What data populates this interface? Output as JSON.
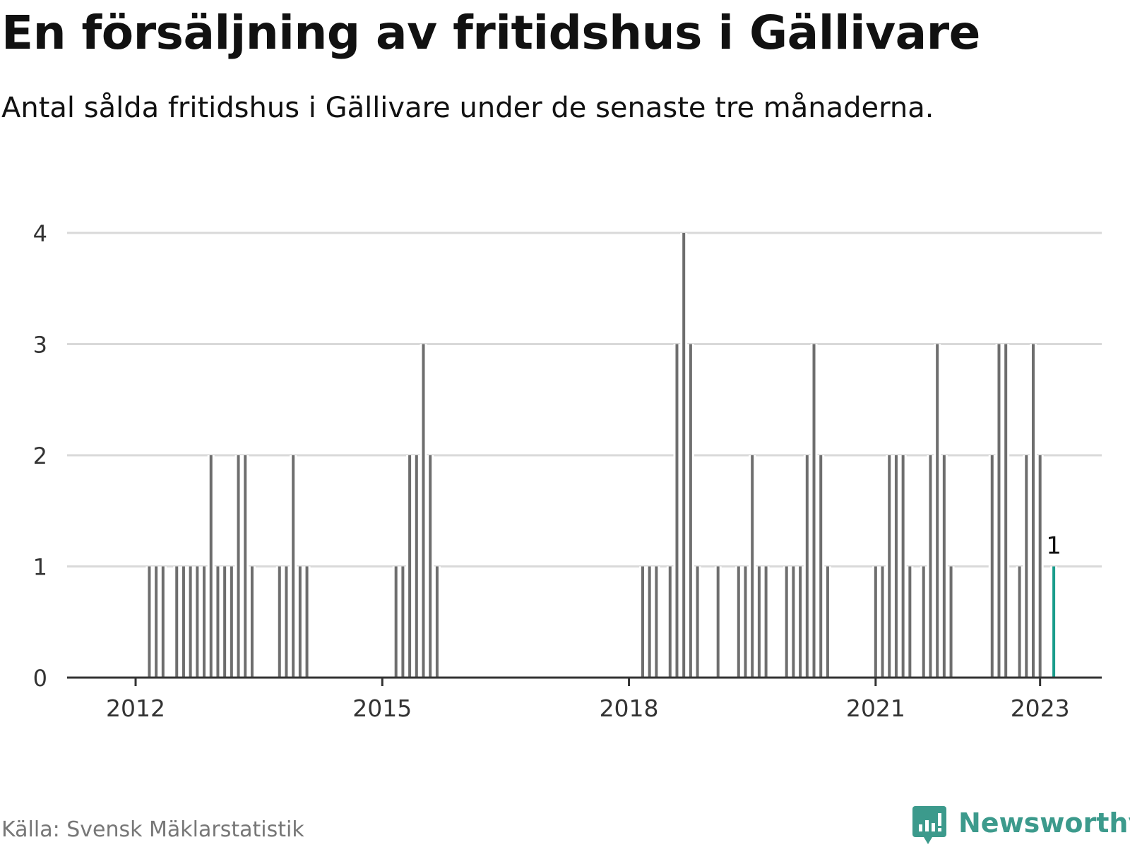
{
  "header": {
    "title": "En försäljning av fritidshus i Gällivare",
    "subtitle": "Antal sålda fritidshus i Gällivare under de senaste tre månaderna."
  },
  "footer": {
    "source": "Källa: Svensk Mäklarstatistik",
    "brand": "Newsworthy"
  },
  "colors": {
    "bar": "#6e6e6e",
    "highlight": "#1a9c8c",
    "grid": "#d9d9d9",
    "axis": "#333333",
    "brand": "#3c9a8c"
  },
  "chart_data": {
    "type": "bar",
    "xlabel": "",
    "ylabel": "",
    "ylim": [
      0,
      4
    ],
    "yticks": [
      0,
      1,
      2,
      3,
      4
    ],
    "xlim": [
      "2011-03",
      "2023-10"
    ],
    "xticks": [
      {
        "label": "2012",
        "x": "2012-01"
      },
      {
        "label": "2015",
        "x": "2015-01"
      },
      {
        "label": "2018",
        "x": "2018-01"
      },
      {
        "label": "2021",
        "x": "2021-01"
      },
      {
        "label": "2023",
        "x": "2023-01"
      }
    ],
    "grid": true,
    "highlight_label": "1",
    "series": [
      {
        "values": [
          {
            "x": "2012-03",
            "y": 1
          },
          {
            "x": "2012-04",
            "y": 1
          },
          {
            "x": "2012-05",
            "y": 1
          },
          {
            "x": "2012-07",
            "y": 1
          },
          {
            "x": "2012-08",
            "y": 1
          },
          {
            "x": "2012-09",
            "y": 1
          },
          {
            "x": "2012-10",
            "y": 1
          },
          {
            "x": "2012-11",
            "y": 1
          },
          {
            "x": "2012-12",
            "y": 2
          },
          {
            "x": "2013-01",
            "y": 1
          },
          {
            "x": "2013-02",
            "y": 1
          },
          {
            "x": "2013-03",
            "y": 1
          },
          {
            "x": "2013-04",
            "y": 2
          },
          {
            "x": "2013-05",
            "y": 2
          },
          {
            "x": "2013-06",
            "y": 1
          },
          {
            "x": "2013-10",
            "y": 1
          },
          {
            "x": "2013-11",
            "y": 1
          },
          {
            "x": "2013-12",
            "y": 2
          },
          {
            "x": "2014-01",
            "y": 1
          },
          {
            "x": "2014-02",
            "y": 1
          },
          {
            "x": "2015-03",
            "y": 1
          },
          {
            "x": "2015-04",
            "y": 1
          },
          {
            "x": "2015-05",
            "y": 2
          },
          {
            "x": "2015-06",
            "y": 2
          },
          {
            "x": "2015-07",
            "y": 3
          },
          {
            "x": "2015-08",
            "y": 2
          },
          {
            "x": "2015-09",
            "y": 1
          },
          {
            "x": "2018-03",
            "y": 1
          },
          {
            "x": "2018-04",
            "y": 1
          },
          {
            "x": "2018-05",
            "y": 1
          },
          {
            "x": "2018-07",
            "y": 1
          },
          {
            "x": "2018-08",
            "y": 3
          },
          {
            "x": "2018-09",
            "y": 4
          },
          {
            "x": "2018-10",
            "y": 3
          },
          {
            "x": "2018-11",
            "y": 1
          },
          {
            "x": "2019-02",
            "y": 1
          },
          {
            "x": "2019-05",
            "y": 1
          },
          {
            "x": "2019-06",
            "y": 1
          },
          {
            "x": "2019-07",
            "y": 2
          },
          {
            "x": "2019-08",
            "y": 1
          },
          {
            "x": "2019-09",
            "y": 1
          },
          {
            "x": "2019-12",
            "y": 1
          },
          {
            "x": "2020-01",
            "y": 1
          },
          {
            "x": "2020-02",
            "y": 1
          },
          {
            "x": "2020-03",
            "y": 2
          },
          {
            "x": "2020-04",
            "y": 3
          },
          {
            "x": "2020-05",
            "y": 2
          },
          {
            "x": "2020-06",
            "y": 1
          },
          {
            "x": "2021-01",
            "y": 1
          },
          {
            "x": "2021-02",
            "y": 1
          },
          {
            "x": "2021-03",
            "y": 2
          },
          {
            "x": "2021-04",
            "y": 2
          },
          {
            "x": "2021-05",
            "y": 2
          },
          {
            "x": "2021-06",
            "y": 1
          },
          {
            "x": "2021-08",
            "y": 1
          },
          {
            "x": "2021-09",
            "y": 2
          },
          {
            "x": "2021-10",
            "y": 3
          },
          {
            "x": "2021-11",
            "y": 2
          },
          {
            "x": "2021-12",
            "y": 1
          },
          {
            "x": "2022-06",
            "y": 2
          },
          {
            "x": "2022-07",
            "y": 3
          },
          {
            "x": "2022-08",
            "y": 3
          },
          {
            "x": "2022-10",
            "y": 1
          },
          {
            "x": "2022-11",
            "y": 2
          },
          {
            "x": "2022-12",
            "y": 3
          },
          {
            "x": "2023-01",
            "y": 2
          },
          {
            "x": "2023-03",
            "y": 1,
            "highlight": true
          }
        ]
      }
    ]
  }
}
